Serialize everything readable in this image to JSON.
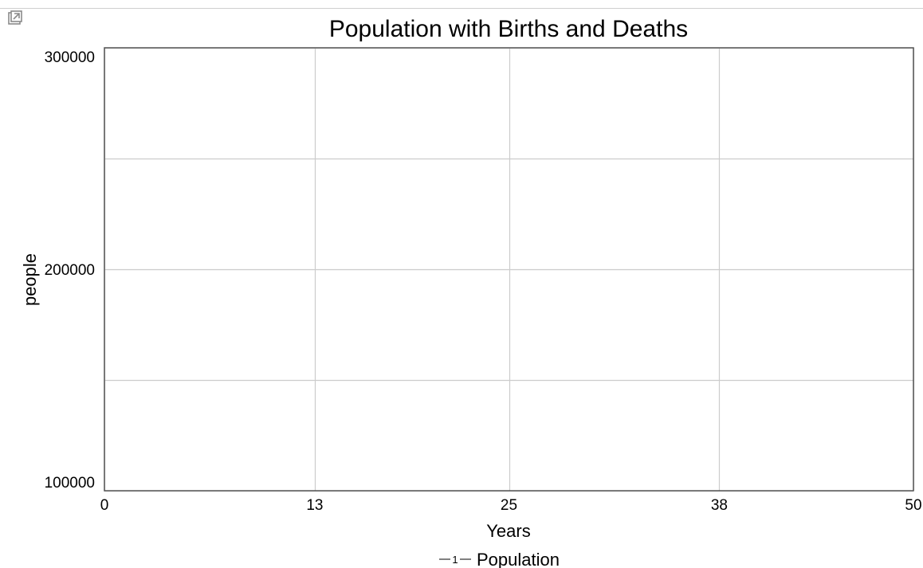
{
  "toolbar": {
    "popout_icon": "popout-icon"
  },
  "colors": {
    "grid": "#cccccc",
    "frame": "#555555",
    "series": "#1f1fd0"
  },
  "chart_data": {
    "type": "line",
    "title": "Population with Births and Deaths",
    "xlabel": "Years",
    "ylabel": "people",
    "xlim": [
      0,
      50
    ],
    "ylim": [
      100000,
      300000
    ],
    "x_ticks": [
      "0",
      "13",
      "25",
      "38",
      "50"
    ],
    "y_ticks": [
      "100000",
      "200000",
      "300000"
    ],
    "grid": true,
    "legend_position": "bottom-center",
    "series": [
      {
        "name": "Population",
        "marker_label": "1",
        "x": [],
        "y": []
      }
    ]
  }
}
